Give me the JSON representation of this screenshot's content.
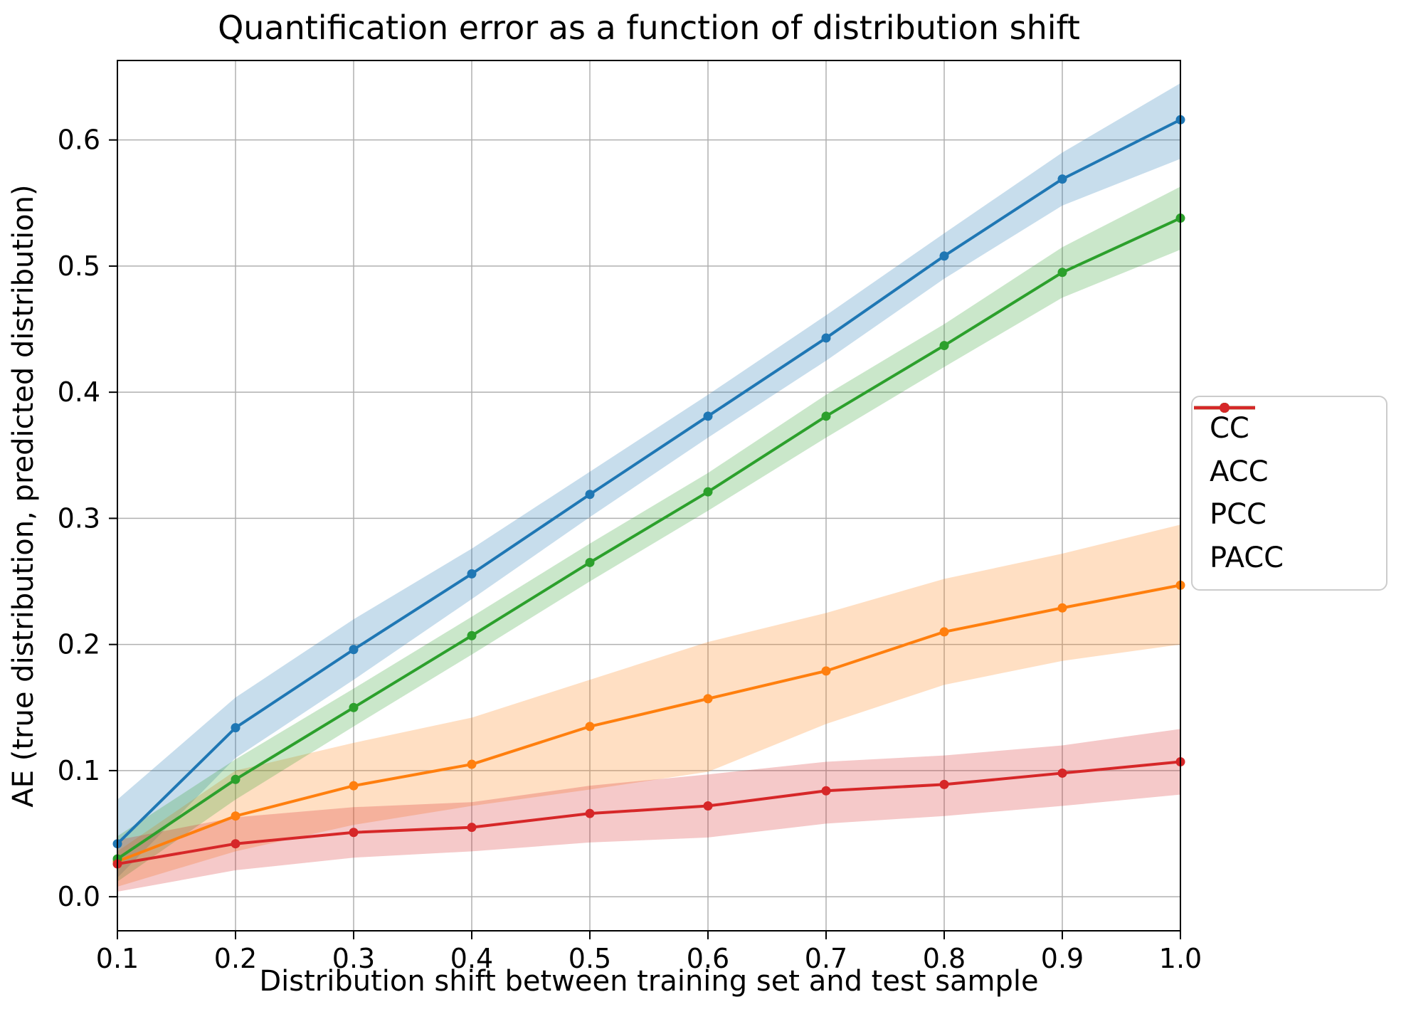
{
  "chart_data": {
    "type": "line",
    "title": "Quantification error as a function of distribution shift",
    "xlabel": "Distribution shift between training set and test sample",
    "ylabel": "AE (true distribution, predicted distribution)",
    "grid": true,
    "grid_color": "#b0b0b0",
    "background_color": "#ffffff",
    "spine_color": "#000000",
    "legend_position": "right-outside",
    "band_alpha": 0.25,
    "xlim": [
      0.1,
      1.0
    ],
    "ylim": [
      -0.027,
      0.663
    ],
    "x": [
      0.1,
      0.2,
      0.3,
      0.4,
      0.5,
      0.6,
      0.7,
      0.8,
      0.9,
      1.0
    ],
    "xticks": {
      "values": [
        0.1,
        0.2,
        0.3,
        0.4,
        0.5,
        0.6,
        0.7,
        0.8,
        0.9,
        1.0
      ],
      "labels": [
        "0.1",
        "0.2",
        "0.3",
        "0.4",
        "0.5",
        "0.6",
        "0.7",
        "0.8",
        "0.9",
        "1.0"
      ]
    },
    "yticks": {
      "values": [
        0.0,
        0.1,
        0.2,
        0.3,
        0.4,
        0.5,
        0.6
      ],
      "labels": [
        "0.0",
        "0.1",
        "0.2",
        "0.3",
        "0.4",
        "0.5",
        "0.6"
      ]
    },
    "series": [
      {
        "name": "CC",
        "color": "#1f77b4",
        "values": [
          0.042,
          0.134,
          0.196,
          0.256,
          0.319,
          0.381,
          0.443,
          0.508,
          0.569,
          0.616
        ],
        "band_lower": [
          0.015,
          0.11,
          0.172,
          0.236,
          0.301,
          0.364,
          0.425,
          0.49,
          0.548,
          0.585
        ],
        "band_upper": [
          0.077,
          0.158,
          0.22,
          0.276,
          0.337,
          0.398,
          0.461,
          0.526,
          0.59,
          0.645
        ]
      },
      {
        "name": "ACC",
        "color": "#ff7f0e",
        "values": [
          0.028,
          0.064,
          0.088,
          0.105,
          0.135,
          0.157,
          0.179,
          0.21,
          0.229,
          0.247
        ],
        "band_lower": [
          0.008,
          0.036,
          0.057,
          0.072,
          0.085,
          0.099,
          0.137,
          0.168,
          0.187,
          0.2
        ],
        "band_upper": [
          0.036,
          0.1,
          0.122,
          0.142,
          0.172,
          0.202,
          0.225,
          0.252,
          0.272,
          0.295
        ]
      },
      {
        "name": "PCC",
        "color": "#2ca02c",
        "values": [
          0.03,
          0.093,
          0.15,
          0.207,
          0.265,
          0.321,
          0.381,
          0.437,
          0.495,
          0.538
        ],
        "band_lower": [
          0.012,
          0.077,
          0.135,
          0.192,
          0.25,
          0.306,
          0.364,
          0.42,
          0.475,
          0.513
        ],
        "band_upper": [
          0.048,
          0.109,
          0.165,
          0.222,
          0.28,
          0.336,
          0.398,
          0.454,
          0.515,
          0.563
        ]
      },
      {
        "name": "PACC",
        "color": "#d62728",
        "values": [
          0.026,
          0.042,
          0.051,
          0.055,
          0.066,
          0.072,
          0.084,
          0.089,
          0.098,
          0.107
        ],
        "band_lower": [
          0.004,
          0.021,
          0.031,
          0.036,
          0.043,
          0.047,
          0.058,
          0.064,
          0.072,
          0.081
        ],
        "band_upper": [
          0.045,
          0.063,
          0.071,
          0.075,
          0.088,
          0.097,
          0.107,
          0.112,
          0.12,
          0.133
        ]
      }
    ]
  }
}
